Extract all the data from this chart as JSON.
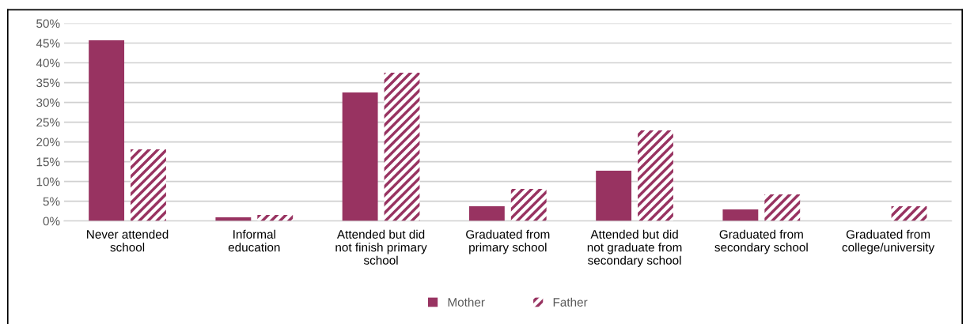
{
  "chart_data": {
    "type": "bar",
    "categories": [
      "Never attended\nschool",
      "Informal\neducation",
      "Attended but did\nnot finish primary\nschool",
      "Graduated from\nprimary school",
      "Attended but did\nnot graduate from\nsecondary school",
      "Graduated from\nsecondary school",
      "Graduated from\ncollege/university"
    ],
    "series": [
      {
        "name": "Mother",
        "color": "#983361",
        "values": [
          45.7,
          0.9,
          32.5,
          3.7,
          12.7,
          2.9,
          0
        ]
      },
      {
        "name": "Father",
        "color": "#983361",
        "values": [
          18.1,
          1.5,
          37.5,
          8.1,
          22.9,
          6.7,
          3.7
        ]
      }
    ],
    "ylim": [
      0,
      50
    ],
    "yticks": [
      {
        "value": 0,
        "label": "0%"
      },
      {
        "value": 5,
        "label": "5%"
      },
      {
        "value": 10,
        "label": "10%"
      },
      {
        "value": 15,
        "label": "15%"
      },
      {
        "value": 20,
        "label": "20%"
      },
      {
        "value": 25,
        "label": "25%"
      },
      {
        "value": 30,
        "label": "30%"
      },
      {
        "value": 35,
        "label": "35%"
      },
      {
        "value": 40,
        "label": "40%"
      },
      {
        "value": 45,
        "label": "45%"
      },
      {
        "value": 50,
        "label": "50%"
      }
    ],
    "grid": "y",
    "legend": "bottom"
  }
}
